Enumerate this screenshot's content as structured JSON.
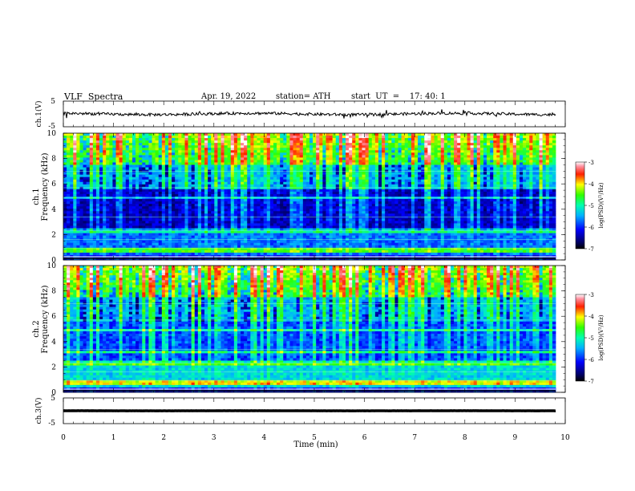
{
  "header": {
    "title": "VLF  Spectra",
    "date": "Apr. 19, 2022",
    "station": "station= ATH",
    "start": "start  UT  =    17: 40: 1"
  },
  "chart_data": [
    {
      "type": "line",
      "ylabel": "ch.1(V)",
      "ylim": [
        -5,
        5
      ],
      "yticks": [
        "5",
        "-5"
      ],
      "xlim": [
        0,
        10
      ],
      "description_series": [
        {
          "values_range": [
            -1,
            1
          ]
        }
      ]
    },
    {
      "type": "heatmap",
      "ylabel_line1": "ch.1",
      "ylabel_line2": "Frequency  (kHz)",
      "ylim": [
        0,
        10
      ],
      "yticks": [
        "0",
        "2",
        "4",
        "6",
        "8",
        "10"
      ],
      "xlim": [
        0,
        10
      ],
      "colorbar": {
        "label": "log(PSD)(V²/Hz)",
        "range": [
          -7,
          -3
        ],
        "ticks": [
          "-3",
          "-4",
          "-5",
          "-6",
          "-7"
        ]
      }
    },
    {
      "type": "heatmap",
      "ylabel_line1": "ch.2",
      "ylabel_line2": "Frequency  (kHz)",
      "ylim": [
        0,
        10
      ],
      "yticks": [
        "0",
        "2",
        "4",
        "6",
        "8",
        "10"
      ],
      "xlim": [
        0,
        10
      ],
      "colorbar": {
        "label": "log(PSD)(V²/Hz)",
        "range": [
          -7,
          -3
        ],
        "ticks": [
          "-3",
          "-4",
          "-5",
          "-6",
          "-7"
        ]
      }
    },
    {
      "type": "line",
      "ylabel": "ch.3(V)",
      "ylim": [
        -5,
        5
      ],
      "yticks": [
        "5",
        "-5"
      ],
      "xlim": [
        0,
        10
      ],
      "description_series": [
        {
          "values_range": [
            -0.1,
            0.1
          ]
        }
      ]
    }
  ],
  "xaxis": {
    "label": "Time  (min)",
    "ticks": [
      "0",
      "1",
      "2",
      "3",
      "4",
      "5",
      "6",
      "7",
      "8",
      "9",
      "10"
    ]
  },
  "colors": {
    "trace": "#000000",
    "background": "#ffffff"
  }
}
